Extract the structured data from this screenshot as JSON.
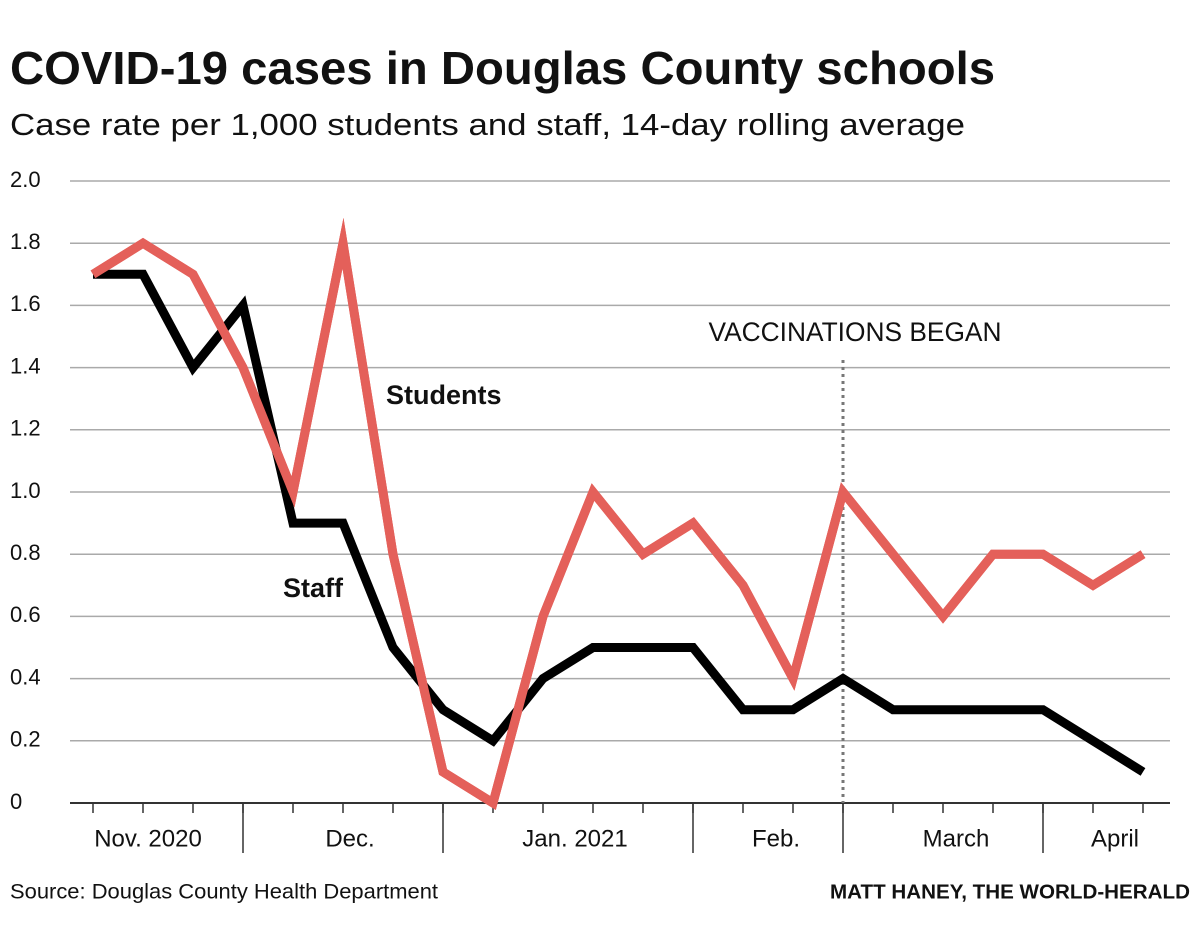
{
  "chart_data": {
    "type": "line",
    "title": "COVID-19 cases in Douglas County schools",
    "subtitle": "Case rate per 1,000 students and staff, 14-day rolling average",
    "categories": [
      null,
      null,
      null,
      null,
      null,
      null,
      null,
      null,
      null,
      null,
      null,
      null,
      null,
      null,
      null,
      null,
      null,
      null,
      null,
      null,
      null,
      null
    ],
    "month_labels": [
      "Nov. 2020",
      "Dec.",
      "Jan. 2021",
      "Feb.",
      "March",
      "April"
    ],
    "series": [
      {
        "name": "Staff",
        "color": "#000000",
        "values": [
          1.7,
          1.7,
          1.4,
          1.6,
          0.9,
          0.9,
          0.5,
          0.3,
          0.2,
          0.4,
          0.5,
          0.5,
          0.5,
          0.3,
          0.3,
          0.4,
          0.3,
          0.3,
          0.3,
          0.3,
          0.2,
          0.1
        ]
      },
      {
        "name": "Students",
        "color": "#e4605a",
        "values": [
          1.7,
          1.8,
          1.7,
          1.4,
          1.0,
          1.8,
          0.8,
          0.1,
          0.0,
          0.6,
          1.0,
          0.8,
          0.9,
          0.7,
          0.4,
          1.0,
          0.8,
          0.6,
          0.8,
          0.8,
          0.7,
          0.8
        ]
      }
    ],
    "ylim": [
      0,
      2
    ],
    "yticks": [
      0,
      0.2,
      0.4,
      0.6,
      0.8,
      {
        "value": 1,
        "label": "1.0"
      },
      1.2,
      1.4,
      1.6,
      1.8,
      {
        "value": 2,
        "label": "2.0"
      }
    ],
    "grid": true,
    "annotation": "VACCINATIONS BEGAN",
    "source": "Source: Douglas County Health Department",
    "credit": "MATT HANEY, THE WORLD-HERALD"
  }
}
